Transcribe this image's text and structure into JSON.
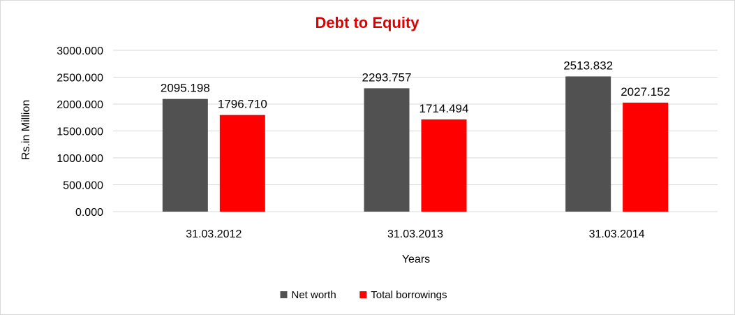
{
  "chart_data": {
    "type": "bar",
    "title": "Debt to Equity",
    "title_color": "#e00000",
    "xlabel": "Years",
    "ylabel": "Rs.in Million",
    "categories": [
      "31.03.2012",
      "31.03.2013",
      "31.03.2014"
    ],
    "series": [
      {
        "name": "Net worth",
        "color": "#515151",
        "values": [
          2095.198,
          2293.757,
          2513.832
        ],
        "labels": [
          "2095.198",
          "2293.757",
          "2513.832"
        ]
      },
      {
        "name": "Total borrowings",
        "color": "#ff0000",
        "values": [
          1796.71,
          1714.494,
          2027.152
        ],
        "labels": [
          "1796.710",
          "1714.494",
          "2027.152"
        ]
      }
    ],
    "ylim": [
      0,
      3000
    ],
    "yticks": [
      "0.000",
      "500.000",
      "1000.000",
      "1500.000",
      "2000.000",
      "2500.000",
      "3000.000"
    ],
    "grid": true,
    "legend_position": "bottom"
  }
}
